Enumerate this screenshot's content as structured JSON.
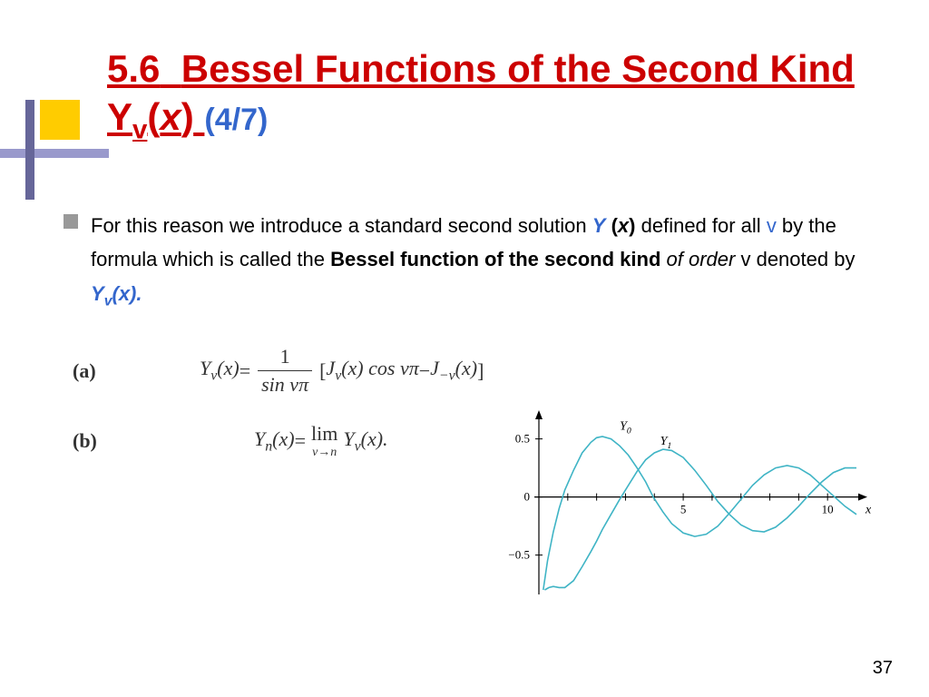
{
  "title": {
    "section": "5.6",
    "main": "Bessel Functions of the Second Kind Y",
    "sub": "v",
    "arg_open": "(",
    "arg_var": "x",
    "arg_close": ")",
    "pager": "(4/7)"
  },
  "bullet": {
    "t1": "For this reason we introduce a standard second solution ",
    "Y": "Y",
    "paren_open": " (",
    "x": "x",
    "paren_close": ")",
    "t2": " defined for all ",
    "v1": "v",
    "t3": " by the formula which is called the ",
    "bessel": "Bessel function of the second kind",
    "oforder": " of order",
    "v2": " v",
    "denoted": " denoted by  ",
    "Yv": "Y",
    "Yv_sub": "v",
    "Yx": "(x)."
  },
  "formulas": {
    "a_label": "(a)",
    "b_label": "(b)",
    "a": {
      "lhs": "Y",
      "lhs_sub": "ν",
      "lhs_arg": "(x)",
      "eq": "  =  ",
      "frac_num": "1",
      "frac_den": "sin νπ",
      "bracket_open": " [",
      "j1": "J",
      "j1_sub": "ν",
      "j1_arg": "(x) cos νπ",
      "minus": " − ",
      "j2": "J",
      "j2_sub": "−ν",
      "j2_arg": "(x)",
      "bracket_close": "]"
    },
    "b": {
      "lhs": "Y",
      "lhs_sub": "n",
      "lhs_arg": "(x)",
      "eq": "  =  ",
      "lim": "lim",
      "lim_under": "ν→n",
      "rhs": " Y",
      "rhs_sub": "ν",
      "rhs_arg": "(x)."
    }
  },
  "chart": {
    "type": "line",
    "xlim": [
      0,
      11
    ],
    "ylim": [
      -0.8,
      0.7
    ],
    "xticks": [
      1,
      2,
      3,
      4,
      5,
      6,
      7,
      8,
      9,
      10
    ],
    "xtick_labels": {
      "5": "5",
      "10": "10"
    },
    "yticks": [
      -0.5,
      0,
      0.5
    ],
    "ytick_labels": {
      "-0.5": "−0.5",
      "0": "0",
      "0.5": "0.5"
    },
    "xlabel": "x",
    "axis_color": "#000000",
    "curve_color": "#3fb4c5",
    "curve_width": 1.6,
    "tick_fontsize": 13,
    "label_fontsize": 14,
    "series": [
      {
        "name": "Y0",
        "label": "Y",
        "label_sub": "0",
        "label_pos": [
          2.8,
          0.58
        ],
        "points": [
          [
            0.15,
            -0.8
          ],
          [
            0.3,
            -0.55
          ],
          [
            0.5,
            -0.3
          ],
          [
            0.7,
            -0.1
          ],
          [
            0.9,
            0.06
          ],
          [
            1.2,
            0.23
          ],
          [
            1.5,
            0.38
          ],
          [
            1.8,
            0.47
          ],
          [
            2.0,
            0.51
          ],
          [
            2.2,
            0.52
          ],
          [
            2.5,
            0.5
          ],
          [
            2.8,
            0.44
          ],
          [
            3.1,
            0.36
          ],
          [
            3.4,
            0.25
          ],
          [
            3.7,
            0.13
          ],
          [
            3.96,
            0.0
          ],
          [
            4.3,
            -0.13
          ],
          [
            4.6,
            -0.23
          ],
          [
            5.0,
            -0.31
          ],
          [
            5.4,
            -0.34
          ],
          [
            5.8,
            -0.32
          ],
          [
            6.2,
            -0.25
          ],
          [
            6.6,
            -0.14
          ],
          [
            7.0,
            -0.02
          ],
          [
            7.4,
            0.1
          ],
          [
            7.8,
            0.19
          ],
          [
            8.2,
            0.25
          ],
          [
            8.6,
            0.27
          ],
          [
            9.0,
            0.25
          ],
          [
            9.4,
            0.19
          ],
          [
            9.8,
            0.1
          ],
          [
            10.2,
            0.01
          ],
          [
            10.6,
            -0.08
          ],
          [
            11.0,
            -0.15
          ]
        ]
      },
      {
        "name": "Y1",
        "label": "Y",
        "label_sub": "1",
        "label_pos": [
          4.2,
          0.45
        ],
        "points": [
          [
            0.2,
            -0.8
          ],
          [
            0.35,
            -0.78
          ],
          [
            0.5,
            -0.77
          ],
          [
            0.7,
            -0.78
          ],
          [
            0.9,
            -0.78
          ],
          [
            1.2,
            -0.72
          ],
          [
            1.5,
            -0.6
          ],
          [
            1.8,
            -0.47
          ],
          [
            2.0,
            -0.38
          ],
          [
            2.2,
            -0.28
          ],
          [
            2.5,
            -0.15
          ],
          [
            2.8,
            -0.02
          ],
          [
            3.1,
            0.1
          ],
          [
            3.4,
            0.22
          ],
          [
            3.7,
            0.32
          ],
          [
            4.0,
            0.38
          ],
          [
            4.3,
            0.41
          ],
          [
            4.6,
            0.4
          ],
          [
            5.0,
            0.34
          ],
          [
            5.4,
            0.23
          ],
          [
            5.8,
            0.1
          ],
          [
            6.2,
            -0.04
          ],
          [
            6.6,
            -0.15
          ],
          [
            7.0,
            -0.24
          ],
          [
            7.4,
            -0.29
          ],
          [
            7.8,
            -0.3
          ],
          [
            8.2,
            -0.26
          ],
          [
            8.6,
            -0.18
          ],
          [
            9.0,
            -0.08
          ],
          [
            9.4,
            0.03
          ],
          [
            9.8,
            0.13
          ],
          [
            10.2,
            0.21
          ],
          [
            10.6,
            0.25
          ],
          [
            11.0,
            0.25
          ]
        ]
      }
    ]
  },
  "page_number": "37"
}
